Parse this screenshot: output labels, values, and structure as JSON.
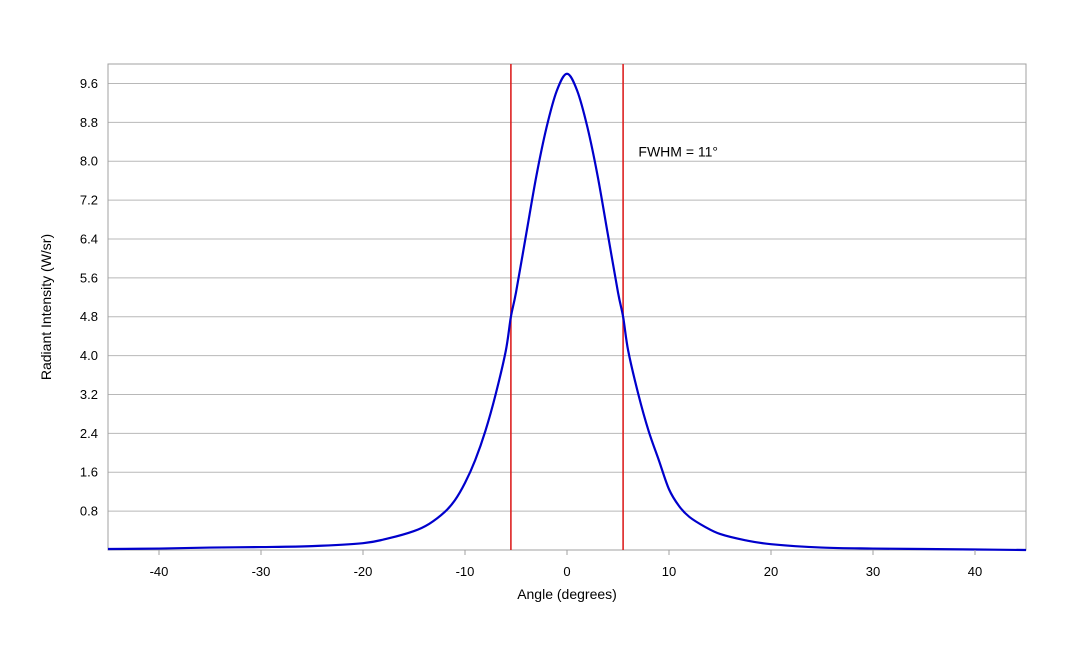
{
  "chart_data": {
    "type": "line",
    "title": "",
    "xlabel": "Angle (degrees)",
    "ylabel": "Radiant Intensity (W/sr)",
    "xlim": [
      -45,
      45
    ],
    "ylim": [
      0,
      10
    ],
    "x_ticks": [
      -40,
      -30,
      -20,
      -10,
      0,
      10,
      20,
      30,
      40
    ],
    "y_ticks": [
      0.8,
      1.6,
      2.4,
      3.2,
      4.0,
      4.8,
      5.6,
      6.4,
      7.2,
      8.0,
      8.8,
      9.6
    ],
    "y_tick_labels": [
      "0.8",
      "1.6",
      "2.4",
      "3.2",
      "4.0",
      "4.8",
      "5.6",
      "6.4",
      "7.2",
      "8.0",
      "8.8",
      "9.6"
    ],
    "grid": "horizontal",
    "legend": "none",
    "series": [
      {
        "color": "#0000cc",
        "x": [
          -45,
          -40,
          -35,
          -30,
          -25,
          -20,
          -17.5,
          -15,
          -13.5,
          -12,
          -11,
          -10,
          -9,
          -8,
          -7,
          -6,
          -5.5,
          -5,
          -4,
          -3,
          -2,
          -1,
          0,
          1,
          2,
          3,
          4,
          5,
          5.5,
          6,
          7,
          8,
          9,
          10,
          11,
          12,
          13.5,
          15,
          17.5,
          20,
          25,
          30,
          35,
          40,
          45
        ],
        "y": [
          0.02,
          0.03,
          0.05,
          0.06,
          0.08,
          0.14,
          0.24,
          0.39,
          0.54,
          0.78,
          1.02,
          1.38,
          1.85,
          2.45,
          3.2,
          4.1,
          4.8,
          5.3,
          6.5,
          7.7,
          8.7,
          9.45,
          9.8,
          9.45,
          8.7,
          7.7,
          6.5,
          5.3,
          4.8,
          4.1,
          3.2,
          2.45,
          1.85,
          1.25,
          0.9,
          0.68,
          0.48,
          0.33,
          0.2,
          0.12,
          0.05,
          0.03,
          0.02,
          0.01,
          0.0
        ]
      }
    ],
    "vertical_lines": [
      {
        "x": -5.5,
        "color": "#dd2222"
      },
      {
        "x": 5.5,
        "color": "#dd2222"
      }
    ],
    "annotations": [
      {
        "text": "FWHM = 11°",
        "x": 7.0,
        "y": 8.2
      }
    ]
  }
}
